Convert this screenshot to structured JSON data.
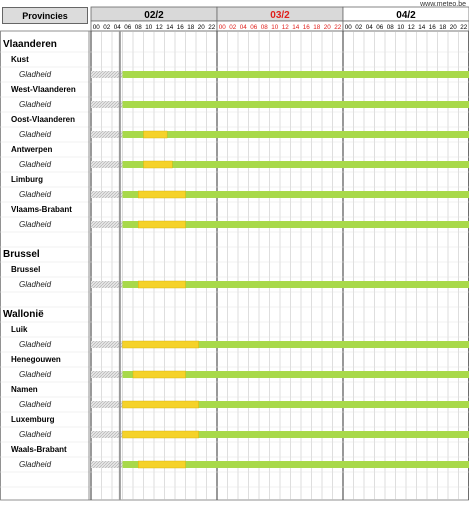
{
  "credit": "www.meteo.be",
  "header": {
    "provinces_label": "Provincies",
    "days": [
      {
        "label": "02/2",
        "color": "#000000",
        "bg": "#d9d9d9"
      },
      {
        "label": "03/2",
        "color": "#e0201c",
        "bg": "#d9d9d9"
      },
      {
        "label": "04/2",
        "color": "#000000",
        "bg": "#ffffff"
      }
    ],
    "hours": [
      "00",
      "02",
      "04",
      "06",
      "08",
      "10",
      "12",
      "14",
      "16",
      "18",
      "20",
      "22"
    ]
  },
  "colors": {
    "green": "#a8d94a",
    "yellow": "#f5d22a",
    "hatch": "#bdbdbd",
    "grid": "#bdbdbd",
    "day_divider": "#555555",
    "now_line": "#9a9a9a",
    "day1_hour_color": "#000000",
    "day2_hour_color": "#e0201c",
    "day3_hour_color": "#000000"
  },
  "rows": [
    {
      "type": "region",
      "label": "Vlaanderen"
    },
    {
      "type": "province",
      "label": "Kust"
    },
    {
      "type": "slipperiness",
      "label": "Gladheid",
      "yellow": []
    },
    {
      "type": "province",
      "label": "West-Vlaanderen"
    },
    {
      "type": "slipperiness",
      "label": "Gladheid",
      "yellow": []
    },
    {
      "type": "province",
      "label": "Oost-Vlaanderen"
    },
    {
      "type": "slipperiness",
      "label": "Gladheid",
      "yellow": [
        [
          10,
          14.5
        ]
      ]
    },
    {
      "type": "province",
      "label": "Antwerpen"
    },
    {
      "type": "slipperiness",
      "label": "Gladheid",
      "yellow": [
        [
          10,
          15.5
        ]
      ]
    },
    {
      "type": "province",
      "label": "Limburg"
    },
    {
      "type": "slipperiness",
      "label": "Gladheid",
      "yellow": [
        [
          9,
          18
        ]
      ]
    },
    {
      "type": "province",
      "label": "Vlaams-Brabant"
    },
    {
      "type": "slipperiness",
      "label": "Gladheid",
      "yellow": [
        [
          9,
          18
        ]
      ]
    },
    {
      "type": "blank",
      "label": ""
    },
    {
      "type": "region",
      "label": "Brussel"
    },
    {
      "type": "province",
      "label": "Brussel"
    },
    {
      "type": "slipperiness",
      "label": "Gladheid",
      "yellow": [
        [
          9,
          18
        ]
      ]
    },
    {
      "type": "blank",
      "label": ""
    },
    {
      "type": "region",
      "label": "Wallonië"
    },
    {
      "type": "province",
      "label": "Luik"
    },
    {
      "type": "slipperiness",
      "label": "Gladheid",
      "yellow": [
        [
          6,
          20.5
        ]
      ]
    },
    {
      "type": "province",
      "label": "Henegouwen"
    },
    {
      "type": "slipperiness",
      "label": "Gladheid",
      "yellow": [
        [
          8,
          18
        ]
      ]
    },
    {
      "type": "province",
      "label": "Namen"
    },
    {
      "type": "slipperiness",
      "label": "Gladheid",
      "yellow": [
        [
          6,
          20.5
        ]
      ]
    },
    {
      "type": "province",
      "label": "Luxemburg"
    },
    {
      "type": "slipperiness",
      "label": "Gladheid",
      "yellow": [
        [
          6,
          20.5
        ]
      ]
    },
    {
      "type": "province",
      "label": "Waals-Brabant"
    },
    {
      "type": "slipperiness",
      "label": "Gladheid",
      "yellow": [
        [
          9,
          18
        ]
      ]
    },
    {
      "type": "blank",
      "label": ""
    }
  ],
  "timeline": {
    "hatch_until_hour": 6,
    "green_from_hour": 6,
    "green_until_hour": 72,
    "now_hour": 5.5
  }
}
